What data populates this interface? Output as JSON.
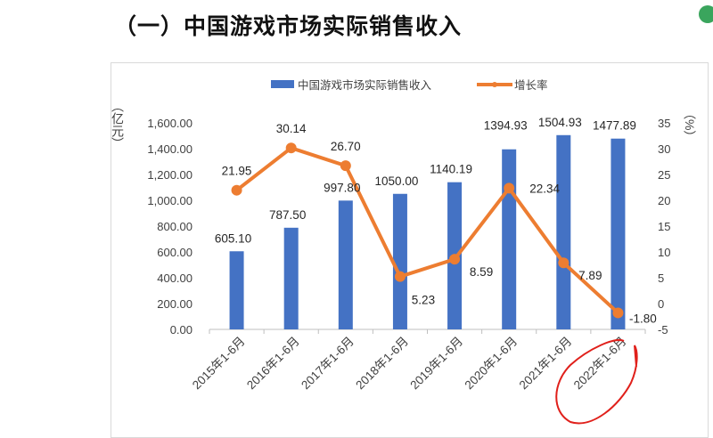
{
  "page_title": "（一）中国游戏市场实际销售收入",
  "chart_data": {
    "type": "bar+line",
    "categories": [
      "2015年1-6月",
      "2016年1-6月",
      "2017年1-6月",
      "2018年1-6月",
      "2019年1-6月",
      "2020年1-6月",
      "2021年1-6月",
      "2022年1-6月"
    ],
    "series": [
      {
        "name": "中国游戏市场实际销售收入",
        "type": "bar",
        "axis": "left",
        "color": "#4472C4",
        "values": [
          605.1,
          787.5,
          997.8,
          1050.0,
          1140.19,
          1394.93,
          1504.93,
          1477.89
        ],
        "labels": [
          "605.10",
          "787.50",
          "997.80",
          "1050.00",
          "1140.19",
          "1394.93",
          "1504.93",
          "1477.89"
        ]
      },
      {
        "name": "增长率",
        "type": "line",
        "axis": "right",
        "color": "#ED7D31",
        "values": [
          21.95,
          30.14,
          26.7,
          5.23,
          8.59,
          22.34,
          7.89,
          -1.8
        ],
        "labels": [
          "21.95",
          "30.14",
          "26.70",
          "5.23",
          "8.59",
          "22.34",
          "7.89",
          "-1.80"
        ]
      }
    ],
    "ylabel_left": "（亿元）",
    "ylabel_right": "（%）",
    "ylim_left": [
      0,
      1600
    ],
    "ylim_right": [
      -5,
      35
    ],
    "yticks_left": [
      "0.00",
      "200.00",
      "400.00",
      "600.00",
      "800.00",
      "1,000.00",
      "1,200.00",
      "1,400.00",
      "1,600.00"
    ],
    "yticks_right": [
      "-5",
      "0",
      "5",
      "10",
      "15",
      "20",
      "25",
      "30",
      "35"
    ],
    "legend": "top",
    "grid": false,
    "annotation": "red hand-drawn circle around 2022年1-6月"
  }
}
